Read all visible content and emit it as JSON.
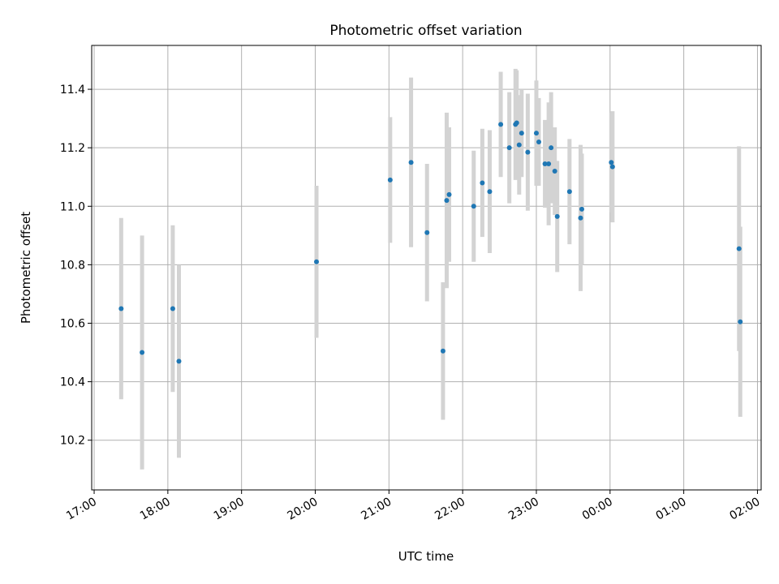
{
  "chart_data": {
    "type": "scatter",
    "title": "Photometric offset variation",
    "xlabel": "UTC time",
    "ylabel": "Photometric offset",
    "x_unit": "UTC datetime",
    "xlim": [
      "2024-01-01T16:58",
      "2024-01-02T02:03"
    ],
    "ylim": [
      10.03,
      11.55
    ],
    "grid": true,
    "x_ticks": [
      {
        "t": "2024-01-01T17:00",
        "label": "17:00"
      },
      {
        "t": "2024-01-01T18:00",
        "label": "18:00"
      },
      {
        "t": "2024-01-01T19:00",
        "label": "19:00"
      },
      {
        "t": "2024-01-01T20:00",
        "label": "20:00"
      },
      {
        "t": "2024-01-01T21:00",
        "label": "21:00"
      },
      {
        "t": "2024-01-01T22:00",
        "label": "22:00"
      },
      {
        "t": "2024-01-01T23:00",
        "label": "23:00"
      },
      {
        "t": "2024-01-02T00:00",
        "label": "00:00"
      },
      {
        "t": "2024-01-02T01:00",
        "label": "01:00"
      },
      {
        "t": "2024-01-02T02:00",
        "label": "02:00"
      }
    ],
    "y_ticks": [
      {
        "value": 10.2,
        "label": "10.2"
      },
      {
        "value": 10.4,
        "label": "10.4"
      },
      {
        "value": 10.6,
        "label": "10.6"
      },
      {
        "value": 10.8,
        "label": "10.8"
      },
      {
        "value": 11.0,
        "label": "11.0"
      },
      {
        "value": 11.2,
        "label": "11.2"
      },
      {
        "value": 11.4,
        "label": "11.4"
      }
    ],
    "point_color": "#1f77b4",
    "errorbar_color": "#d3d3d3",
    "points": [
      {
        "t": "2024-01-01T17:22",
        "y": 10.65,
        "err": 0.31
      },
      {
        "t": "2024-01-01T17:39",
        "y": 10.5,
        "err": 0.4
      },
      {
        "t": "2024-01-01T18:04",
        "y": 10.65,
        "err": 0.285
      },
      {
        "t": "2024-01-01T18:09",
        "y": 10.47,
        "err": 0.33
      },
      {
        "t": "2024-01-01T20:01",
        "y": 10.81,
        "err": 0.26
      },
      {
        "t": "2024-01-01T21:01",
        "y": 11.09,
        "err": 0.215
      },
      {
        "t": "2024-01-01T21:18",
        "y": 11.15,
        "err": 0.29
      },
      {
        "t": "2024-01-01T21:31",
        "y": 10.91,
        "err": 0.235
      },
      {
        "t": "2024-01-01T21:44",
        "y": 10.505,
        "err": 0.235
      },
      {
        "t": "2024-01-01T21:47",
        "y": 11.02,
        "err": 0.3
      },
      {
        "t": "2024-01-01T21:49",
        "y": 11.04,
        "err": 0.23
      },
      {
        "t": "2024-01-01T22:09",
        "y": 11.0,
        "err": 0.19
      },
      {
        "t": "2024-01-01T22:16",
        "y": 11.08,
        "err": 0.185
      },
      {
        "t": "2024-01-01T22:22",
        "y": 11.05,
        "err": 0.21
      },
      {
        "t": "2024-01-01T22:31",
        "y": 11.28,
        "err": 0.18
      },
      {
        "t": "2024-01-01T22:38",
        "y": 11.2,
        "err": 0.19
      },
      {
        "t": "2024-01-01T22:43",
        "y": 11.28,
        "err": 0.19
      },
      {
        "t": "2024-01-01T22:44",
        "y": 11.285,
        "err": 0.18
      },
      {
        "t": "2024-01-01T22:46",
        "y": 11.21,
        "err": 0.17
      },
      {
        "t": "2024-01-01T22:48",
        "y": 11.25,
        "err": 0.15
      },
      {
        "t": "2024-01-01T22:53",
        "y": 11.185,
        "err": 0.2
      },
      {
        "t": "2024-01-01T23:00",
        "y": 11.25,
        "err": 0.18
      },
      {
        "t": "2024-01-01T23:02",
        "y": 11.22,
        "err": 0.15
      },
      {
        "t": "2024-01-01T23:07",
        "y": 11.145,
        "err": 0.15
      },
      {
        "t": "2024-01-01T23:10",
        "y": 11.145,
        "err": 0.21
      },
      {
        "t": "2024-01-01T23:12",
        "y": 11.2,
        "err": 0.19
      },
      {
        "t": "2024-01-01T23:15",
        "y": 11.12,
        "err": 0.15
      },
      {
        "t": "2024-01-01T23:17",
        "y": 10.965,
        "err": 0.19
      },
      {
        "t": "2024-01-01T23:27",
        "y": 11.05,
        "err": 0.18
      },
      {
        "t": "2024-01-01T23:36",
        "y": 10.96,
        "err": 0.25
      },
      {
        "t": "2024-01-01T23:37",
        "y": 10.99,
        "err": 0.19
      },
      {
        "t": "2024-01-02T00:01",
        "y": 11.15,
        "err": 0.17
      },
      {
        "t": "2024-01-02T00:02",
        "y": 11.135,
        "err": 0.19
      },
      {
        "t": "2024-01-02T01:45",
        "y": 10.855,
        "err": 0.35
      },
      {
        "t": "2024-01-02T01:46",
        "y": 10.605,
        "err": 0.325
      }
    ]
  }
}
